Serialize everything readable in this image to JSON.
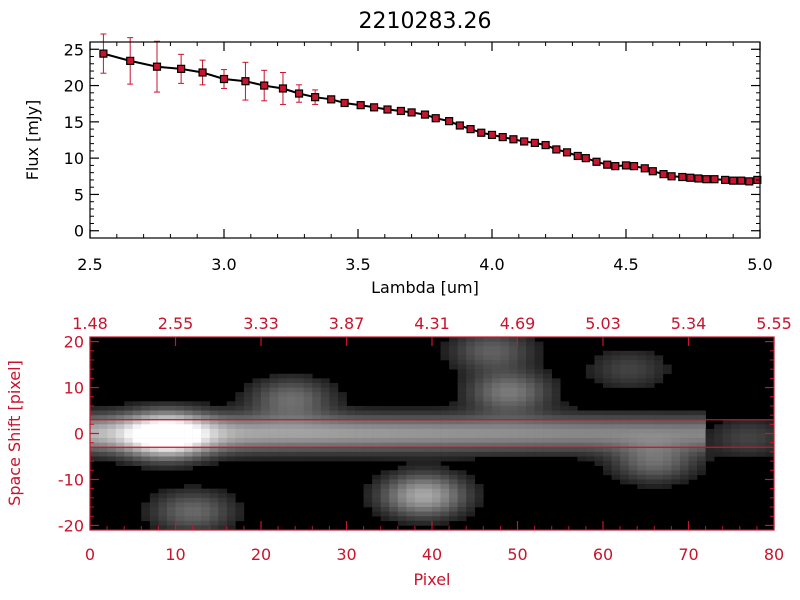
{
  "chart_data": [
    {
      "type": "line",
      "title": "2210283.26",
      "xlabel": "Lambda [um]",
      "ylabel": "Flux [mJy]",
      "xlim": [
        2.5,
        5.0
      ],
      "ylim": [
        -1,
        26
      ],
      "x_ticks": [
        "2.5",
        "3.0",
        "3.5",
        "4.0",
        "4.5",
        "5.0"
      ],
      "y_ticks": [
        "0",
        "5",
        "10",
        "15",
        "20",
        "25"
      ],
      "grid": false,
      "colors": {
        "line": "#000000",
        "marker": "#c8142c",
        "errorbar": "#c8142c"
      },
      "series": [
        {
          "x": [
            2.55,
            2.65,
            2.75,
            2.84,
            2.92,
            3.0,
            3.08,
            3.15,
            3.22,
            3.28,
            3.34,
            3.4,
            3.45,
            3.51,
            3.56,
            3.61,
            3.66,
            3.7,
            3.75,
            3.79,
            3.84,
            3.88,
            3.92,
            3.96,
            4.0,
            4.04,
            4.08,
            4.12,
            4.16,
            4.2,
            4.24,
            4.28,
            4.32,
            4.35,
            4.39,
            4.43,
            4.46,
            4.5,
            4.53,
            4.57,
            4.6,
            4.64,
            4.67,
            4.71,
            4.74,
            4.77,
            4.8,
            4.83,
            4.87,
            4.9,
            4.93,
            4.96,
            4.99
          ],
          "y": [
            24.4,
            23.4,
            22.6,
            22.3,
            21.8,
            20.9,
            20.6,
            20.0,
            19.6,
            18.9,
            18.4,
            18.1,
            17.6,
            17.3,
            17.0,
            16.7,
            16.5,
            16.3,
            16.0,
            15.5,
            15.1,
            14.5,
            14.0,
            13.5,
            13.2,
            12.9,
            12.6,
            12.3,
            12.1,
            11.8,
            11.2,
            10.8,
            10.3,
            10.0,
            9.5,
            9.1,
            8.9,
            9.0,
            8.9,
            8.6,
            8.2,
            7.8,
            7.5,
            7.4,
            7.3,
            7.2,
            7.1,
            7.1,
            7.0,
            6.9,
            6.9,
            6.8,
            7.0
          ],
          "yerr": [
            2.7,
            3.2,
            3.5,
            2.0,
            1.7,
            1.3,
            2.6,
            2.1,
            2.2,
            1.2,
            1.0,
            0.4,
            0.3,
            0.3,
            0.3,
            0.3,
            0.3,
            0.3,
            0.3,
            0.3,
            0.3,
            0.3,
            0.3,
            0.3,
            0.3,
            0.3,
            0.3,
            0.3,
            0.3,
            0.3,
            0.3,
            0.3,
            0.3,
            0.3,
            0.3,
            0.3,
            0.3,
            0.3,
            0.3,
            0.3,
            0.3,
            0.3,
            0.3,
            0.3,
            0.3,
            0.3,
            0.3,
            0.3,
            0.3,
            0.3,
            0.3,
            0.3,
            0.3
          ]
        }
      ]
    },
    {
      "type": "heatmap",
      "xlabel": "Pixel",
      "ylabel": "Space Shift [pixel]",
      "xlim": [
        0,
        80
      ],
      "ylim": [
        -21,
        21
      ],
      "x_ticks": [
        "0",
        "10",
        "20",
        "30",
        "40",
        "50",
        "60",
        "70",
        "80"
      ],
      "y_ticks": [
        "-20",
        "-10",
        "0",
        "10",
        "20"
      ],
      "top_axis_ticks": [
        "1.48",
        "2.55",
        "3.33",
        "3.87",
        "4.31",
        "4.69",
        "5.03",
        "5.34",
        "5.55"
      ],
      "extraction_lines": [
        3,
        -3
      ],
      "colormap": "grayscale",
      "colors": {
        "axis": "#c8142c",
        "line": "#c8142c"
      },
      "sources": [
        {
          "x": 9,
          "y": -0.5,
          "amp": 1.0
        },
        {
          "x": 23.5,
          "y": 7.5,
          "amp": 0.3
        },
        {
          "x": 39,
          "y": -13.5,
          "amp": 0.55
        },
        {
          "x": 49,
          "y": 9,
          "amp": 0.35
        },
        {
          "x": 47,
          "y": 18,
          "amp": 0.25
        },
        {
          "x": 66,
          "y": -6,
          "amp": 0.3
        },
        {
          "x": 12,
          "y": -17,
          "amp": 0.28
        },
        {
          "x": 63,
          "y": 14,
          "amp": 0.15
        },
        {
          "x": 77,
          "y": -1,
          "amp": 0.15
        }
      ]
    }
  ]
}
